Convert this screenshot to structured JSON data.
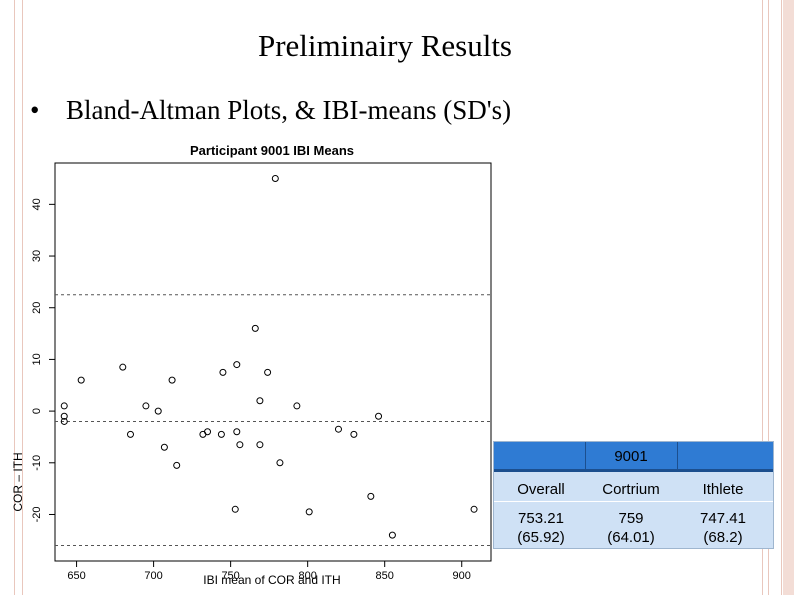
{
  "slide": {
    "title": "Preliminairy Results",
    "bullet_symbol": "•",
    "bullet_text": "Bland-Altman Plots, & IBI-means (SD's)"
  },
  "colors": {
    "edge_pink": "#e9c7bd",
    "table_header_blue": "#2f7bd3",
    "table_body_blue": "#cfe1f5"
  },
  "chart_data": {
    "type": "scatter",
    "title": "Participant 9001 IBI Means",
    "xlabel": "IBI mean of COR and ITH",
    "ylabel": "COR – ITH",
    "xlim": [
      636,
      919
    ],
    "ylim": [
      -29,
      48
    ],
    "x_ticks": [
      650,
      700,
      750,
      800,
      850,
      900
    ],
    "y_ticks": [
      -20,
      -10,
      0,
      10,
      20,
      30,
      40
    ],
    "marker": "open-circle",
    "reference_lines": {
      "mean_difference": -2,
      "upper_limit": 22.5,
      "lower_limit": -26
    },
    "points": [
      {
        "x": 642,
        "y": 1
      },
      {
        "x": 642,
        "y": -1
      },
      {
        "x": 642,
        "y": -2
      },
      {
        "x": 653,
        "y": 6
      },
      {
        "x": 680,
        "y": 8.5
      },
      {
        "x": 685,
        "y": -4.5
      },
      {
        "x": 695,
        "y": 1
      },
      {
        "x": 703,
        "y": 0
      },
      {
        "x": 707,
        "y": -7
      },
      {
        "x": 712,
        "y": 6
      },
      {
        "x": 715,
        "y": -10.5
      },
      {
        "x": 732,
        "y": -4.5
      },
      {
        "x": 735,
        "y": -4
      },
      {
        "x": 744,
        "y": -4.5
      },
      {
        "x": 745,
        "y": 7.5
      },
      {
        "x": 753,
        "y": -19
      },
      {
        "x": 754,
        "y": 9
      },
      {
        "x": 754,
        "y": -4
      },
      {
        "x": 756,
        "y": -6.5
      },
      {
        "x": 766,
        "y": 16
      },
      {
        "x": 769,
        "y": 2
      },
      {
        "x": 769,
        "y": -6.5
      },
      {
        "x": 774,
        "y": 7.5
      },
      {
        "x": 779,
        "y": 45
      },
      {
        "x": 782,
        "y": -10
      },
      {
        "x": 793,
        "y": 1
      },
      {
        "x": 801,
        "y": -19.5
      },
      {
        "x": 820,
        "y": -3.5
      },
      {
        "x": 830,
        "y": -4.5
      },
      {
        "x": 841,
        "y": -16.5
      },
      {
        "x": 846,
        "y": -1
      },
      {
        "x": 855,
        "y": -24
      },
      {
        "x": 908,
        "y": -19
      }
    ]
  },
  "stats_table": {
    "participant": "9001",
    "columns": [
      "Overall",
      "Cortrium",
      "Ithlete"
    ],
    "means": [
      "753.21",
      "759",
      "747.41"
    ],
    "sds": [
      "(65.92)",
      "(64.01)",
      "(68.2)"
    ]
  }
}
